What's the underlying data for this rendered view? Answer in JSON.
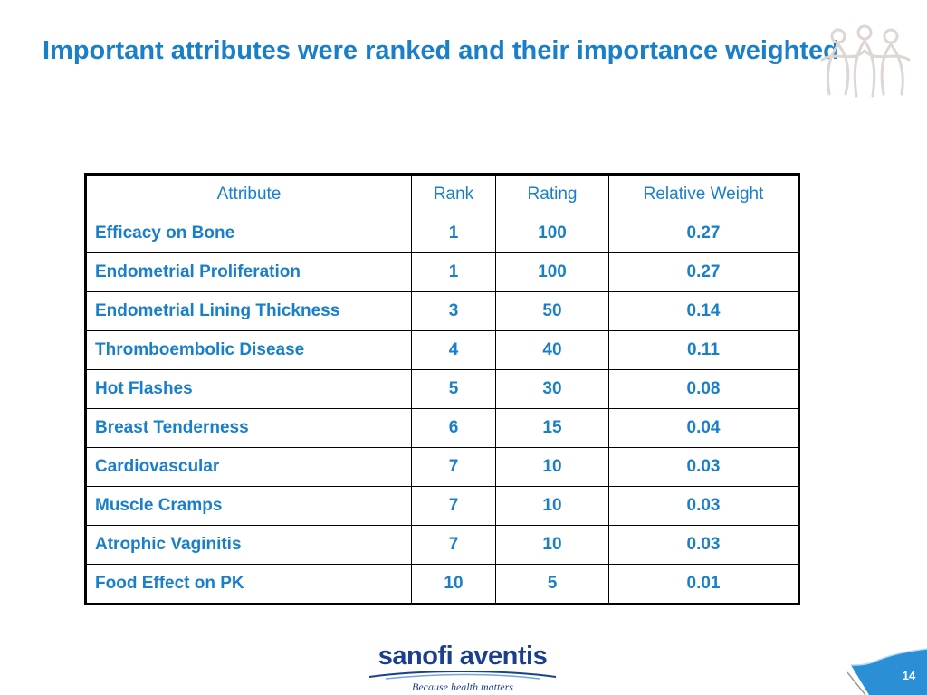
{
  "slide": {
    "title": "Important attributes were ranked and their importance weighted",
    "page_number": "14"
  },
  "table": {
    "headers": [
      "Attribute",
      "Rank",
      "Rating",
      "Relative Weight"
    ],
    "rows": [
      {
        "attribute": "Efficacy on Bone",
        "rank": "1",
        "rating": "100",
        "weight": "0.27"
      },
      {
        "attribute": "Endometrial Proliferation",
        "rank": "1",
        "rating": "100",
        "weight": "0.27"
      },
      {
        "attribute": "Endometrial Lining Thickness",
        "rank": "3",
        "rating": "50",
        "weight": "0.14"
      },
      {
        "attribute": "Thromboembolic Disease",
        "rank": "4",
        "rating": "40",
        "weight": "0.11"
      },
      {
        "attribute": "Hot Flashes",
        "rank": "5",
        "rating": "30",
        "weight": "0.08"
      },
      {
        "attribute": "Breast Tenderness",
        "rank": "6",
        "rating": "15",
        "weight": "0.04"
      },
      {
        "attribute": "Cardiovascular",
        "rank": "7",
        "rating": "10",
        "weight": "0.03"
      },
      {
        "attribute": "Muscle Cramps",
        "rank": "7",
        "rating": "10",
        "weight": "0.03"
      },
      {
        "attribute": "Atrophic Vaginitis",
        "rank": "7",
        "rating": "10",
        "weight": "0.03"
      },
      {
        "attribute": "Food Effect on PK",
        "rank": "10",
        "rating": "5",
        "weight": "0.01"
      }
    ]
  },
  "logo": {
    "brand": "sanofi aventis",
    "tagline": "Because health matters"
  },
  "icons": {
    "decoration": "figures-logo-icon",
    "brand_swoosh": "swoosh-icon",
    "page_tab": "page-tab-icon"
  },
  "colors": {
    "accent": "#1a7fc9",
    "brand": "#1b3f8f",
    "tab": "#2b8fd6",
    "border": "#000000"
  }
}
